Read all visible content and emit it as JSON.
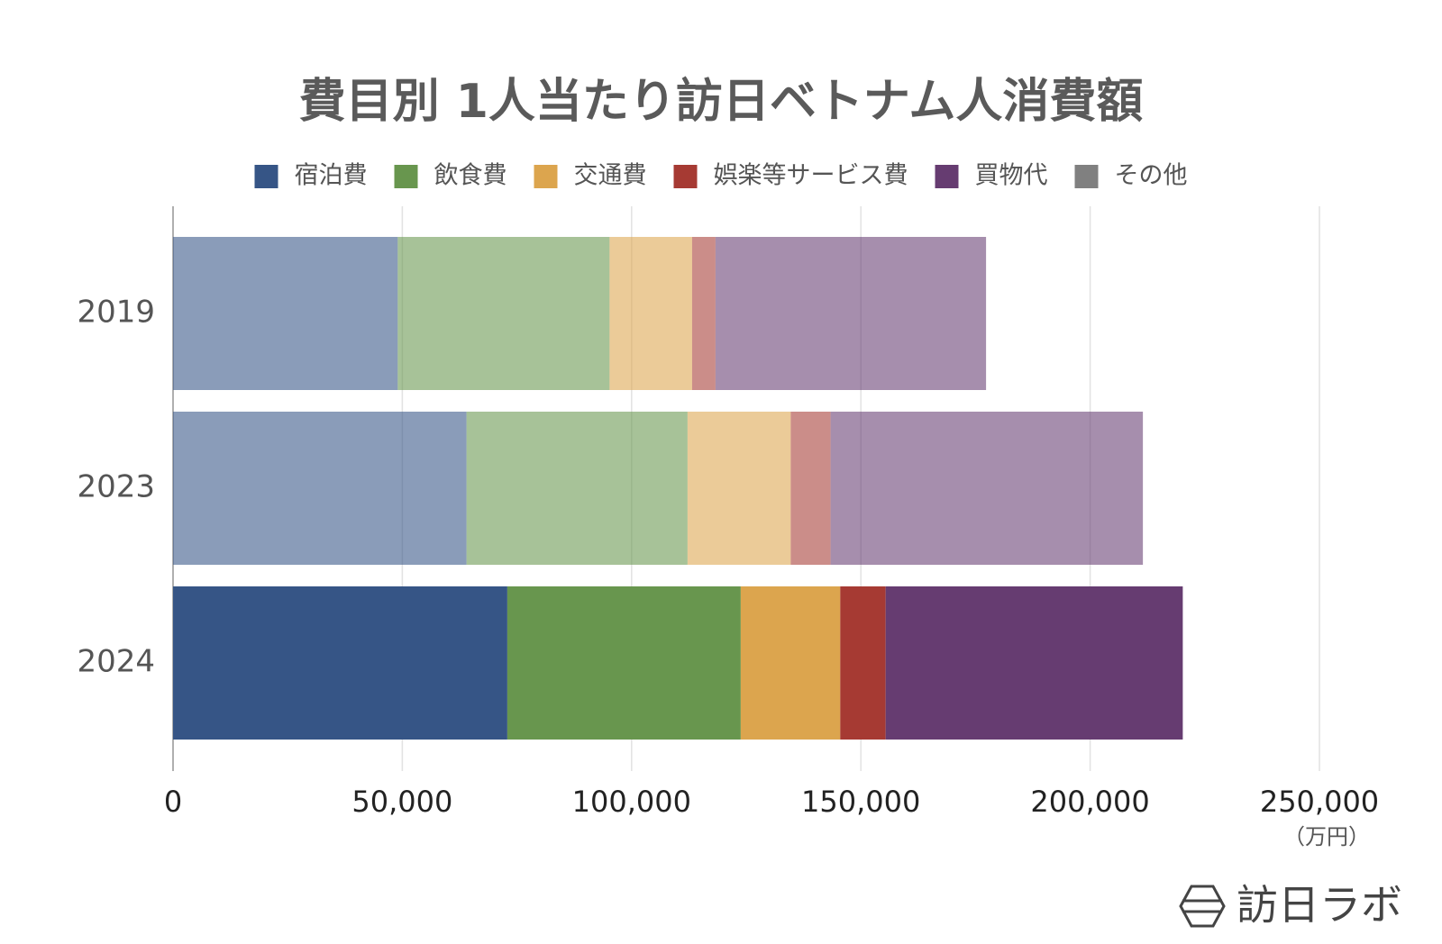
{
  "chart_data": {
    "type": "stacked_barh",
    "title": "費目別 1人当たり訪日ベトナム人消費額",
    "categories": [
      "2019",
      "2023",
      "2024"
    ],
    "series": [
      {
        "name": "宿泊費",
        "color": "#365586",
        "values": [
          49000,
          64000,
          72900
        ]
      },
      {
        "name": "飲食費",
        "color": "#68964e",
        "values": [
          46200,
          48200,
          50900
        ]
      },
      {
        "name": "交通費",
        "color": "#dca54e",
        "values": [
          18000,
          22500,
          21700
        ]
      },
      {
        "name": "娯楽等サービス費",
        "color": "#a63a33",
        "values": [
          5100,
          8700,
          9900
        ]
      },
      {
        "name": "買物代",
        "color": "#663c71",
        "values": [
          59000,
          68100,
          64800
        ]
      },
      {
        "name": "その他",
        "color": "#808080",
        "values": [
          0,
          0,
          0
        ]
      }
    ],
    "xlim": [
      0,
      250000
    ],
    "xticks": [
      0,
      {
        "value": 50000,
        "label": "50,000"
      },
      {
        "value": 100000,
        "label": "100,000"
      },
      {
        "value": 150000,
        "label": "150,000"
      },
      {
        "value": 200000,
        "label": "200,000"
      },
      {
        "value": 250000,
        "label": "250,000"
      }
    ],
    "x_unit": "（万円）",
    "grid": true,
    "legend": "top",
    "source_logo": "訪日ラボ"
  }
}
